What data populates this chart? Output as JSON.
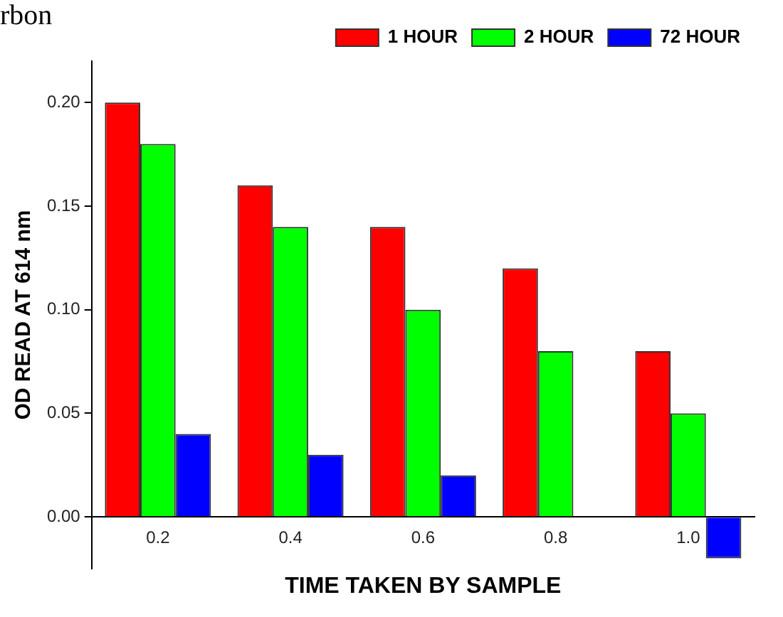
{
  "chart_data": {
    "type": "bar",
    "xlabel": "TIME TAKEN BY SAMPLE",
    "ylabel": "OD READ AT 614 nm",
    "annotations": [
      "rbon"
    ],
    "categories": [
      "0.2",
      "0.4",
      "0.6",
      "0.8",
      "1.0"
    ],
    "series": [
      {
        "name": "1 HOUR",
        "color": "#ff0000",
        "values": [
          0.2,
          0.16,
          0.14,
          0.12,
          0.08
        ]
      },
      {
        "name": "2 HOUR",
        "color": "#00ff00",
        "values": [
          0.18,
          0.14,
          0.1,
          0.08,
          0.05
        ]
      },
      {
        "name": "72 HOUR",
        "color": "#0000ff",
        "values": [
          0.04,
          0.03,
          0.02,
          0,
          -0.02
        ]
      }
    ],
    "ylim": [
      -0.025,
      0.22
    ],
    "yticks": [
      {
        "value": 0,
        "label": "0.00"
      },
      {
        "value": 0.05,
        "label": "0.05"
      },
      {
        "value": 0.1,
        "label": "0.10"
      },
      {
        "value": 0.15,
        "label": "0.15"
      },
      {
        "value": 0.2,
        "label": "0.20"
      }
    ],
    "grid": false,
    "legend": "top right"
  }
}
